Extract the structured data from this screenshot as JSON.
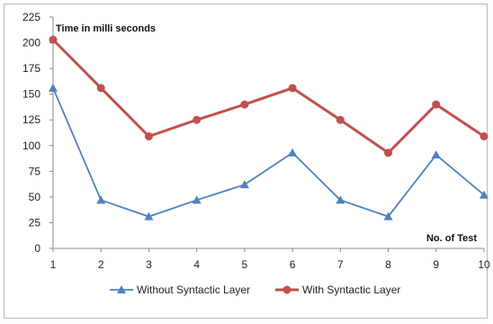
{
  "chart_data": {
    "type": "line",
    "x": [
      1,
      2,
      3,
      4,
      5,
      6,
      7,
      8,
      9,
      10
    ],
    "xlabel": "No. of Test",
    "ylabel": "Time in milli seconds",
    "ylim": [
      0,
      225
    ],
    "yticks": [
      0,
      25,
      50,
      75,
      100,
      125,
      150,
      175,
      200,
      225
    ],
    "grid": false,
    "legend": "bottom",
    "series": [
      {
        "name": "Without Syntactic Layer",
        "color": "#4f81bd",
        "marker": "triangle",
        "values": [
          156,
          47,
          31,
          47,
          62,
          93,
          47,
          31,
          91,
          52
        ]
      },
      {
        "name": "With Syntactic Layer",
        "color": "#c0504d",
        "marker": "circle",
        "values": [
          203,
          156,
          109,
          125,
          140,
          156,
          125,
          93,
          140,
          109
        ]
      }
    ]
  }
}
